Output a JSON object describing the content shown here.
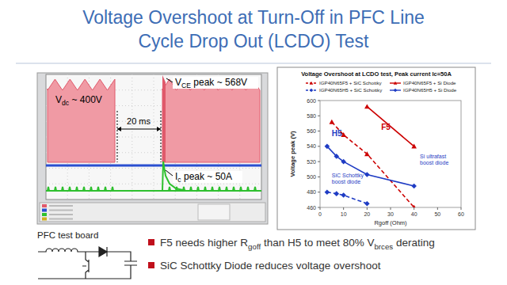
{
  "slide": {
    "title": [
      "Voltage Overshoot at Turn-Off in PFC Line",
      "Cycle Drop Out (LCDO) Test"
    ],
    "scope_labels": {
      "vdc": [
        {
          "text": "V"
        },
        {
          "text": "dc",
          "sub": true
        },
        {
          "text": " ~ 400V"
        }
      ],
      "interval": [
        {
          "text": "20 ms"
        }
      ],
      "vce": [
        {
          "text": "V"
        },
        {
          "text": "CE",
          "sub": true
        },
        {
          "text": " peak ~ 568V"
        }
      ],
      "ic": [
        {
          "text": "I"
        },
        {
          "text": "c",
          "sub": true
        },
        {
          "text": " peak ~ 50A"
        }
      ]
    },
    "board_label": "PFC test board",
    "bullets": [
      [
        {
          "text": "F5 needs higher R"
        },
        {
          "text": "goff",
          "sub": true
        },
        {
          "text": " than H5 to meet 80% V"
        },
        {
          "text": "brces",
          "sub": true
        },
        {
          "text": " derating"
        }
      ],
      [
        {
          "text": "SiC Schottky Diode reduces voltage overshoot"
        }
      ]
    ]
  },
  "chart_data": {
    "type": "line",
    "title": "Voltage Overshoot at LCDO test, Peak current Ic=50A",
    "x_label": "Rgoff (Ohm)",
    "y_label": "Voltage peak (V)",
    "xlim": [
      0,
      60
    ],
    "ylim": [
      460,
      600
    ],
    "xticks": [
      0,
      10,
      20,
      30,
      40,
      50,
      60
    ],
    "yticks": [
      460,
      480,
      500,
      520,
      540,
      560,
      580,
      600
    ],
    "grid": false,
    "legend": "top",
    "series": [
      {
        "name": "IGP40N65F5 + SiC Schottky",
        "color": "#cc0000",
        "line_style": "dashed",
        "marker": "triangle",
        "x": [
          5,
          10,
          20,
          40
        ],
        "values": [
          572,
          555,
          530,
          460
        ]
      },
      {
        "name": "IGP40N65F5 + Si Diode",
        "color": "#cc0000",
        "line_style": "solid",
        "marker": "triangle",
        "x": [
          20,
          40
        ],
        "values": [
          592,
          540
        ]
      },
      {
        "name": "IGP40N65H5 + SiC Schottky",
        "color": "#1f3cc4",
        "line_style": "dashed",
        "marker": "diamond",
        "x": [
          3,
          7,
          10,
          20
        ],
        "values": [
          480,
          478,
          476,
          465
        ]
      },
      {
        "name": "IGP40N65H5 + Si Diode",
        "color": "#1f3cc4",
        "line_style": "solid",
        "marker": "diamond",
        "x": [
          3,
          7,
          10,
          20,
          40
        ],
        "values": [
          540,
          527,
          520,
          503,
          488
        ]
      }
    ],
    "annotations": [
      {
        "text": [
          "F5"
        ],
        "color": "#cc0000"
      },
      {
        "text": [
          "H5"
        ],
        "color": "#1f3cc4"
      },
      {
        "text": [
          "SiC Schottky",
          "boost diode"
        ],
        "color": "#1f3cc4"
      },
      {
        "text": [
          "Si ultrafast",
          "boost diode"
        ],
        "color": "#1f3cc4"
      }
    ]
  }
}
